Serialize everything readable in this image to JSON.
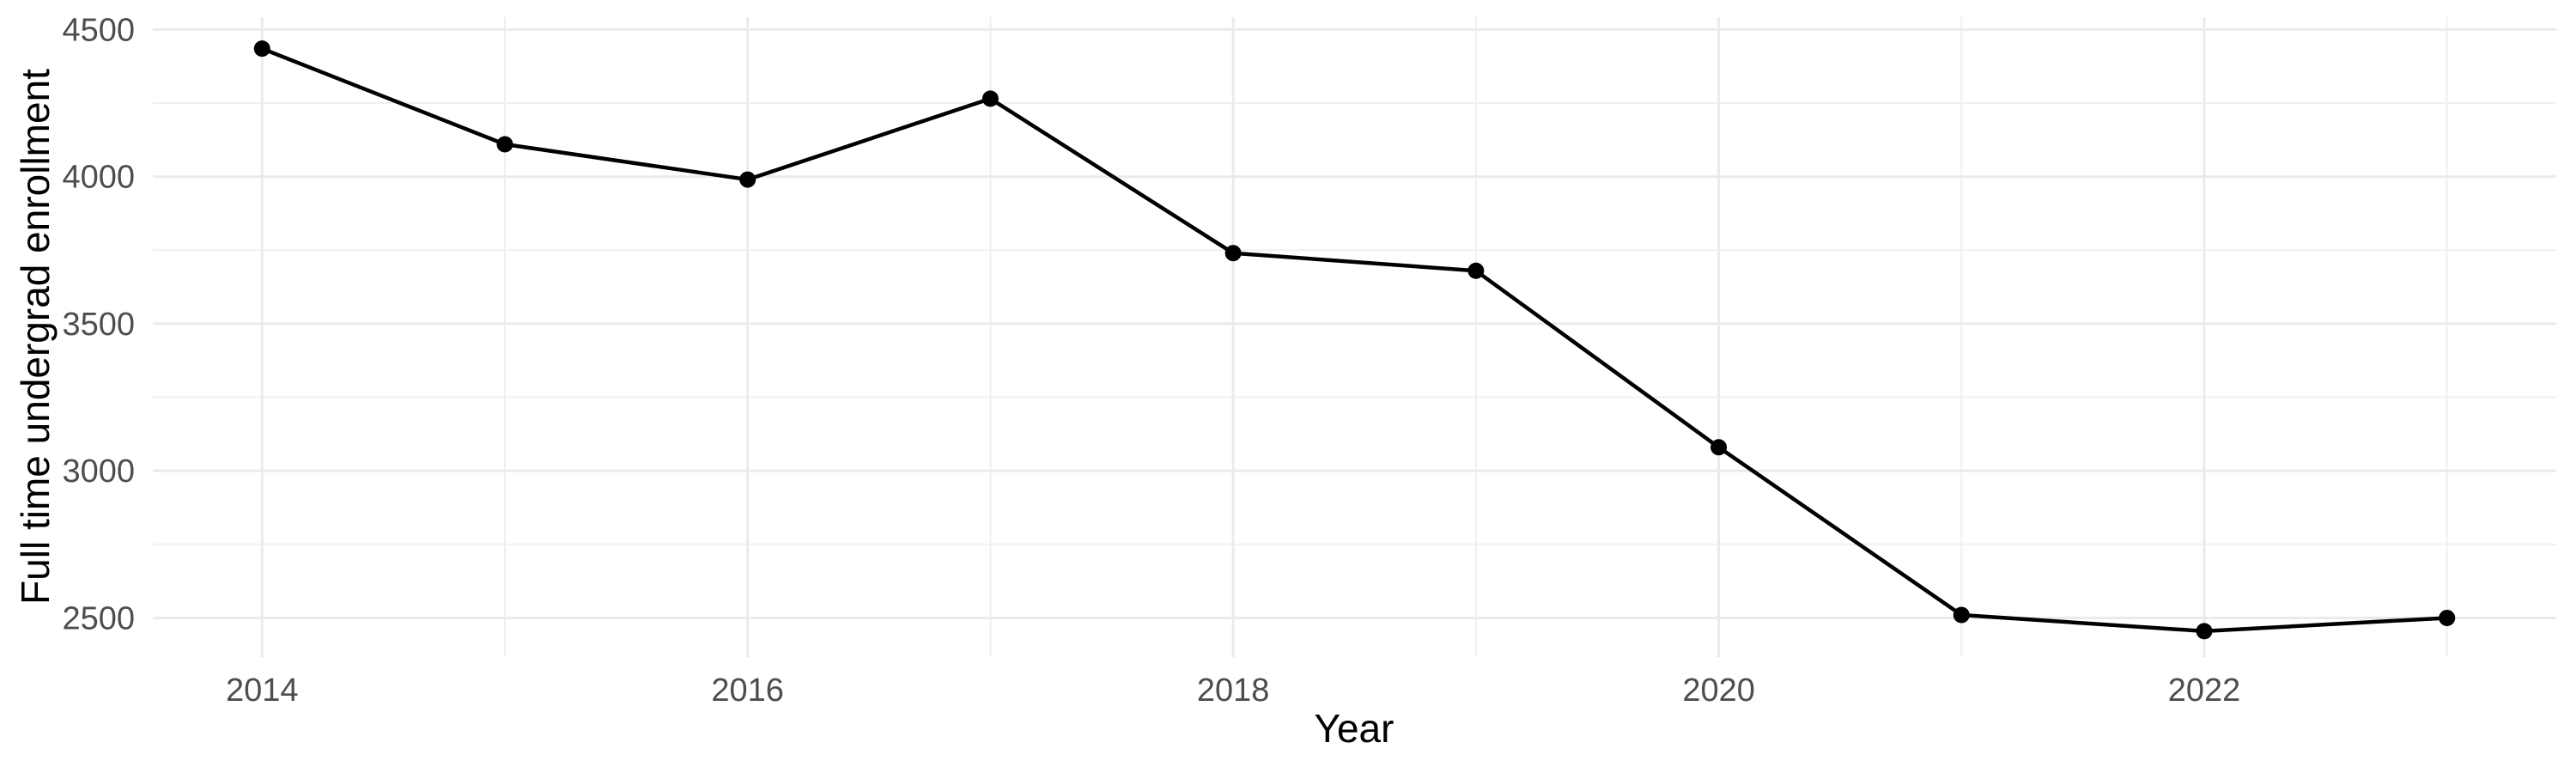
{
  "chart_data": {
    "type": "line",
    "title": "",
    "xlabel": "Year",
    "ylabel": "Full time undergrad enrollment",
    "x": [
      2014,
      2015,
      2016,
      2017,
      2018,
      2019,
      2020,
      2021,
      2022,
      2023
    ],
    "values": [
      4435,
      4110,
      3990,
      4265,
      3740,
      3680,
      3080,
      2510,
      2455,
      2500
    ],
    "series": [
      {
        "name": "Full time undergrad enrollment",
        "values": [
          4435,
          4110,
          3990,
          4265,
          3740,
          3680,
          3080,
          2510,
          2455,
          2500
        ]
      }
    ],
    "x_major_ticks": [
      2014,
      2016,
      2018,
      2020,
      2022
    ],
    "x_minor_ticks": [
      2015,
      2017,
      2019,
      2021,
      2023
    ],
    "y_major_ticks": [
      2500,
      3000,
      3500,
      4000,
      4500
    ],
    "y_minor_ticks": [
      2750,
      3250,
      3750,
      4250
    ],
    "xlim": [
      2013.55,
      2023.45
    ],
    "ylim": [
      2367,
      4542
    ],
    "grid": "on",
    "legend": "none",
    "colors": {
      "line": "#000000",
      "point": "#000000",
      "grid_major": "#EBEBEB",
      "grid_minor": "#F0F0F0",
      "tick_label": "#4D4D4D",
      "axis_title": "#000000",
      "background": "#FFFFFF"
    }
  }
}
